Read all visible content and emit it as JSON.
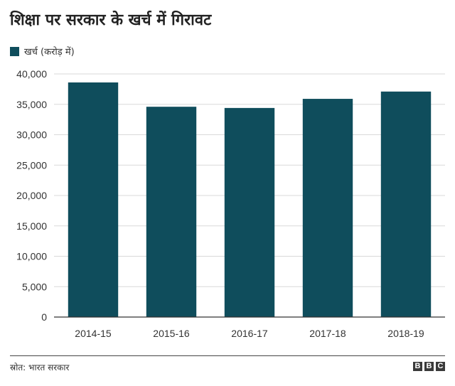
{
  "title": "शिक्षा पर सरकार के खर्च में गिरावट",
  "legend_label": "खर्च (करोड़ में)",
  "source": "स्रोत: भारत सरकार",
  "logo": [
    "B",
    "B",
    "C"
  ],
  "colors": {
    "bar": "#0f4d5c",
    "grid": "#d9d9d9",
    "axis": "#333333"
  },
  "chart_data": {
    "type": "bar",
    "categories": [
      "2014-15",
      "2015-16",
      "2016-17",
      "2017-18",
      "2018-19"
    ],
    "series": [
      {
        "name": "खर्च (करोड़ में)",
        "values": [
          38600,
          34600,
          34400,
          35900,
          37100
        ]
      }
    ],
    "yticks": [
      "0",
      "5,000",
      "10,000",
      "15,000",
      "20,000",
      "25,000",
      "30,000",
      "35,000",
      "40,000"
    ],
    "ylim": [
      0,
      40000
    ],
    "grid": true,
    "legend_position": "top-left"
  }
}
